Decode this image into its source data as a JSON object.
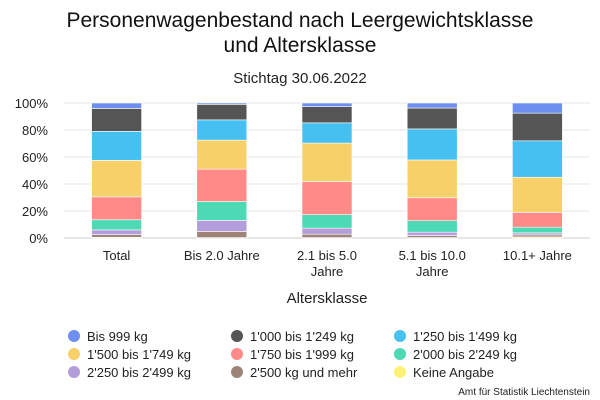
{
  "chart_data": {
    "type": "bar",
    "stacked": true,
    "normalized": true,
    "title_line1": "Personenwagenbestand nach Leergewichtsklasse",
    "title_line2": "und Altersklasse",
    "subtitle": "Stichtag 30.06.2022",
    "xlabel": "Altersklasse",
    "ylabel": "",
    "ylim": [
      0,
      100
    ],
    "yticks": [
      "0%",
      "20%",
      "40%",
      "60%",
      "80%",
      "100%"
    ],
    "grid": true,
    "legend_position": "bottom",
    "categories": [
      {
        "lines": [
          "Total"
        ]
      },
      {
        "lines": [
          "Bis 2.0 Jahre"
        ]
      },
      {
        "lines": [
          "2.1 bis 5.0",
          "Jahre"
        ]
      },
      {
        "lines": [
          "5.1 bis 10.0",
          "Jahre"
        ]
      },
      {
        "lines": [
          "10.1+ Jahre"
        ]
      }
    ],
    "series": [
      {
        "name": "Keine Angabe",
        "color": "#fff176",
        "values": [
          0.5,
          0.3,
          0.3,
          0.3,
          0.8
        ]
      },
      {
        "name": "2'500 kg und mehr",
        "color": "#9e8478",
        "values": [
          2,
          4.5,
          2.5,
          1.5,
          1.5
        ]
      },
      {
        "name": "2'250 bis 2'499 kg",
        "color": "#b39ddb",
        "values": [
          3.5,
          8.2,
          4.5,
          2.5,
          1.5
        ]
      },
      {
        "name": "2'000 bis 2'249 kg",
        "color": "#4dd9b3",
        "values": [
          7.5,
          14,
          10,
          8.5,
          4.2
        ]
      },
      {
        "name": "1'750 bis 1'999 kg",
        "color": "#ff8a87",
        "values": [
          17,
          24,
          24.5,
          17,
          11
        ]
      },
      {
        "name": "1'500 bis 1'749 kg",
        "color": "#f8d06a",
        "values": [
          27,
          21.5,
          28.5,
          28,
          26
        ]
      },
      {
        "name": "1'250 bis 1'499 kg",
        "color": "#45c0f0",
        "values": [
          21.5,
          15,
          15,
          23,
          27
        ]
      },
      {
        "name": "1'000 bis 1'249 kg",
        "color": "#555555",
        "values": [
          17,
          11.5,
          12,
          15.5,
          20.5
        ]
      },
      {
        "name": "Bis 999 kg",
        "color": "#6d8ff0",
        "values": [
          4,
          1,
          2.7,
          3.7,
          7.5
        ]
      }
    ]
  },
  "legend_order": [
    "Bis 999 kg",
    "1'000 bis 1'249 kg",
    "1'250 bis 1'499 kg",
    "1'500 bis 1'749 kg",
    "1'750 bis 1'999 kg",
    "2'000 bis 2'249 kg",
    "2'250 bis 2'499 kg",
    "2'500 kg und mehr",
    "Keine Angabe"
  ],
  "source": "Amt für Statistik Liechtenstein"
}
